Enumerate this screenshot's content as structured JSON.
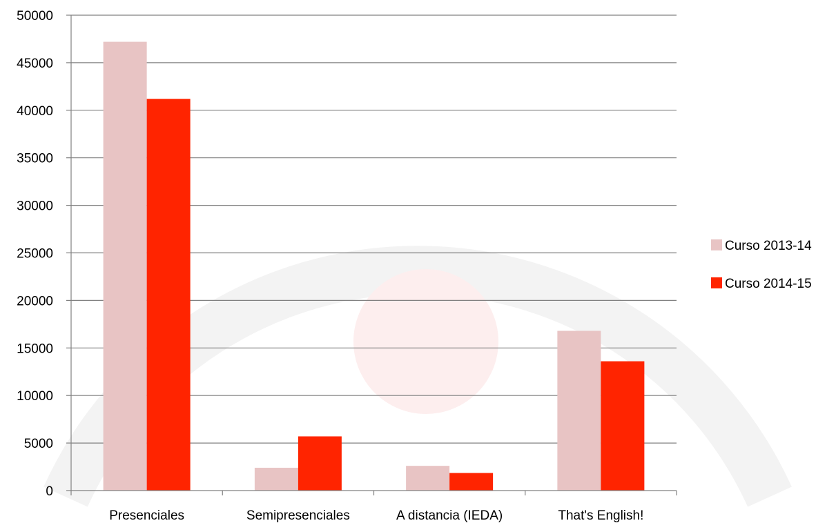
{
  "chart_data": {
    "type": "bar",
    "title": "",
    "xlabel": "",
    "ylabel": "",
    "categories": [
      "Presenciales",
      "Semipresenciales",
      "A distancia (IEDA)",
      "That's English!"
    ],
    "series": [
      {
        "name": "Curso 2013-14",
        "color": "#e8c4c4",
        "values": [
          47200,
          2400,
          2600,
          16800
        ]
      },
      {
        "name": "Curso 2014-15",
        "color": "#ff2400",
        "values": [
          41200,
          5700,
          1850,
          13600
        ]
      }
    ],
    "ylim": [
      0,
      50000
    ],
    "yticks": [
      "0",
      "5000",
      "10000",
      "15000",
      "20000",
      "25000",
      "30000",
      "35000",
      "40000",
      "45000",
      "50000"
    ],
    "grid": true,
    "legend_position": "right",
    "colors": {
      "axis": "#808080",
      "grid": "#808080",
      "watermark": "#f2f2f2",
      "watermark_circle": "#fdecea"
    }
  }
}
